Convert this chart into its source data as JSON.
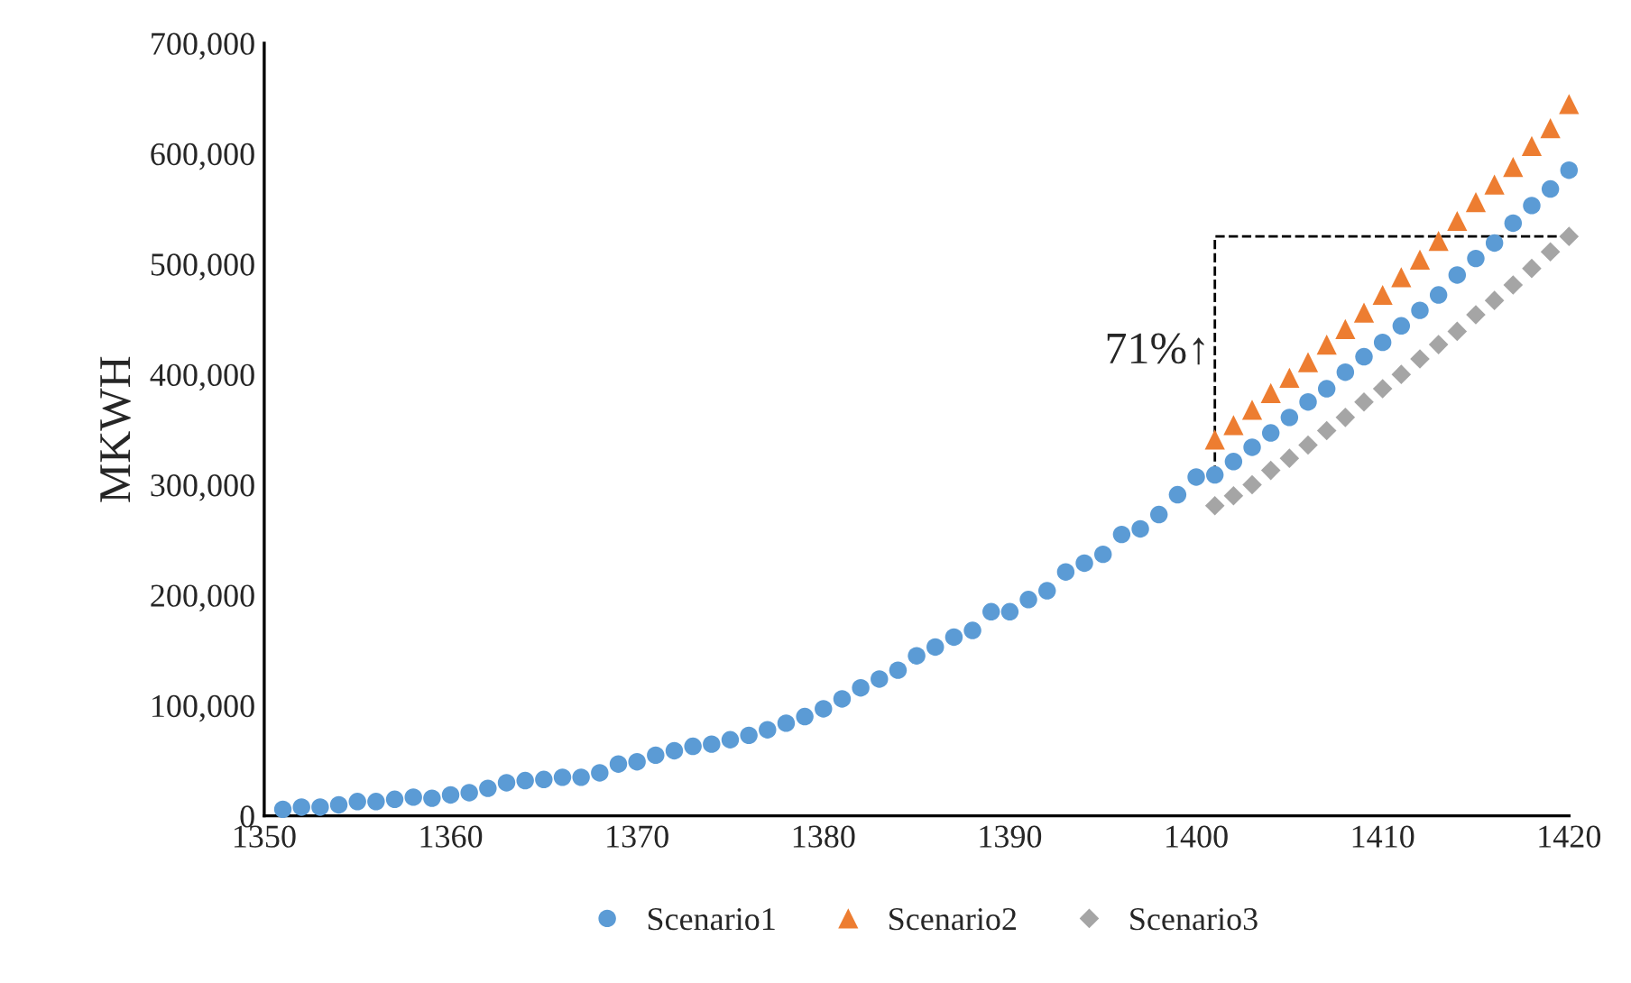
{
  "chart_data": {
    "type": "scatter",
    "ylabel": "MKWH",
    "xlim": [
      1350,
      1420
    ],
    "xticks": [
      1350,
      1360,
      1370,
      1380,
      1390,
      1400,
      1410,
      1420
    ],
    "ylim": [
      0,
      700000
    ],
    "yticks": [
      {
        "value": 0,
        "label": "0"
      },
      {
        "value": 100000,
        "label": "100,000"
      },
      {
        "value": 200000,
        "label": "200,000"
      },
      {
        "value": 300000,
        "label": "300,000"
      },
      {
        "value": 400000,
        "label": "400,000"
      },
      {
        "value": 500000,
        "label": "500,000"
      },
      {
        "value": 600000,
        "label": "600,000"
      },
      {
        "value": 700000,
        "label": "700,000"
      }
    ],
    "grid": false,
    "legend": "bottom",
    "annotations": [
      {
        "text": "71%↑",
        "x": 1401,
        "y": 420000
      }
    ],
    "series": [
      {
        "name": "Scenario1",
        "color": "#5b9bd5",
        "marker": "circle",
        "x": [
          1351,
          1352,
          1353,
          1354,
          1355,
          1356,
          1357,
          1358,
          1359,
          1360,
          1361,
          1362,
          1363,
          1364,
          1365,
          1366,
          1367,
          1368,
          1369,
          1370,
          1371,
          1372,
          1373,
          1374,
          1375,
          1376,
          1377,
          1378,
          1379,
          1380,
          1381,
          1382,
          1383,
          1384,
          1385,
          1386,
          1387,
          1388,
          1389,
          1390,
          1391,
          1392,
          1393,
          1394,
          1395,
          1396,
          1397,
          1398,
          1399,
          1400,
          1401,
          1402,
          1403,
          1404,
          1405,
          1406,
          1407,
          1408,
          1409,
          1410,
          1411,
          1412,
          1413,
          1414,
          1415,
          1416,
          1417,
          1418,
          1419,
          1420
        ],
        "values": [
          6000,
          8000,
          8000,
          10000,
          13000,
          13000,
          15000,
          17000,
          16000,
          19000,
          21000,
          25000,
          30000,
          32000,
          33000,
          35000,
          35000,
          39000,
          47000,
          49000,
          55000,
          59000,
          63000,
          65000,
          69000,
          73000,
          78000,
          84000,
          90000,
          97000,
          106000,
          116000,
          124000,
          132000,
          145000,
          153000,
          162000,
          168000,
          185000,
          185000,
          196000,
          204000,
          221000,
          229000,
          237000,
          255000,
          260000,
          273000,
          291000,
          307000,
          309000,
          321000,
          334000,
          347000,
          361000,
          375000,
          387000,
          402000,
          416000,
          429000,
          444000,
          458000,
          472000,
          490000,
          505000,
          519000,
          537000,
          553000,
          568000,
          585000
        ]
      },
      {
        "name": "Scenario2",
        "color": "#ed7d31",
        "marker": "triangle",
        "x": [
          1401,
          1402,
          1403,
          1404,
          1405,
          1406,
          1407,
          1408,
          1409,
          1410,
          1411,
          1412,
          1413,
          1414,
          1415,
          1416,
          1417,
          1418,
          1419,
          1420
        ],
        "values": [
          341000,
          354000,
          368000,
          383000,
          397000,
          411000,
          427000,
          441000,
          456000,
          472000,
          488000,
          504000,
          521000,
          539000,
          556000,
          572000,
          588000,
          607000,
          623000,
          645000
        ]
      },
      {
        "name": "Scenario3",
        "color": "#a5a5a5",
        "marker": "diamond",
        "x": [
          1401,
          1402,
          1403,
          1404,
          1405,
          1406,
          1407,
          1408,
          1409,
          1410,
          1411,
          1412,
          1413,
          1414,
          1415,
          1416,
          1417,
          1418,
          1419,
          1420
        ],
        "values": [
          281000,
          290000,
          300000,
          313000,
          324000,
          336000,
          349000,
          361000,
          375000,
          387000,
          400000,
          414000,
          427000,
          439000,
          454000,
          467000,
          481000,
          496000,
          511000,
          525000
        ]
      },
      {
        "type": "line",
        "color": "#000000",
        "line_style": "dashed",
        "marker": "none",
        "x": [
          1401,
          1401,
          1420
        ],
        "values": [
          309000,
          525000,
          525000
        ]
      }
    ]
  }
}
